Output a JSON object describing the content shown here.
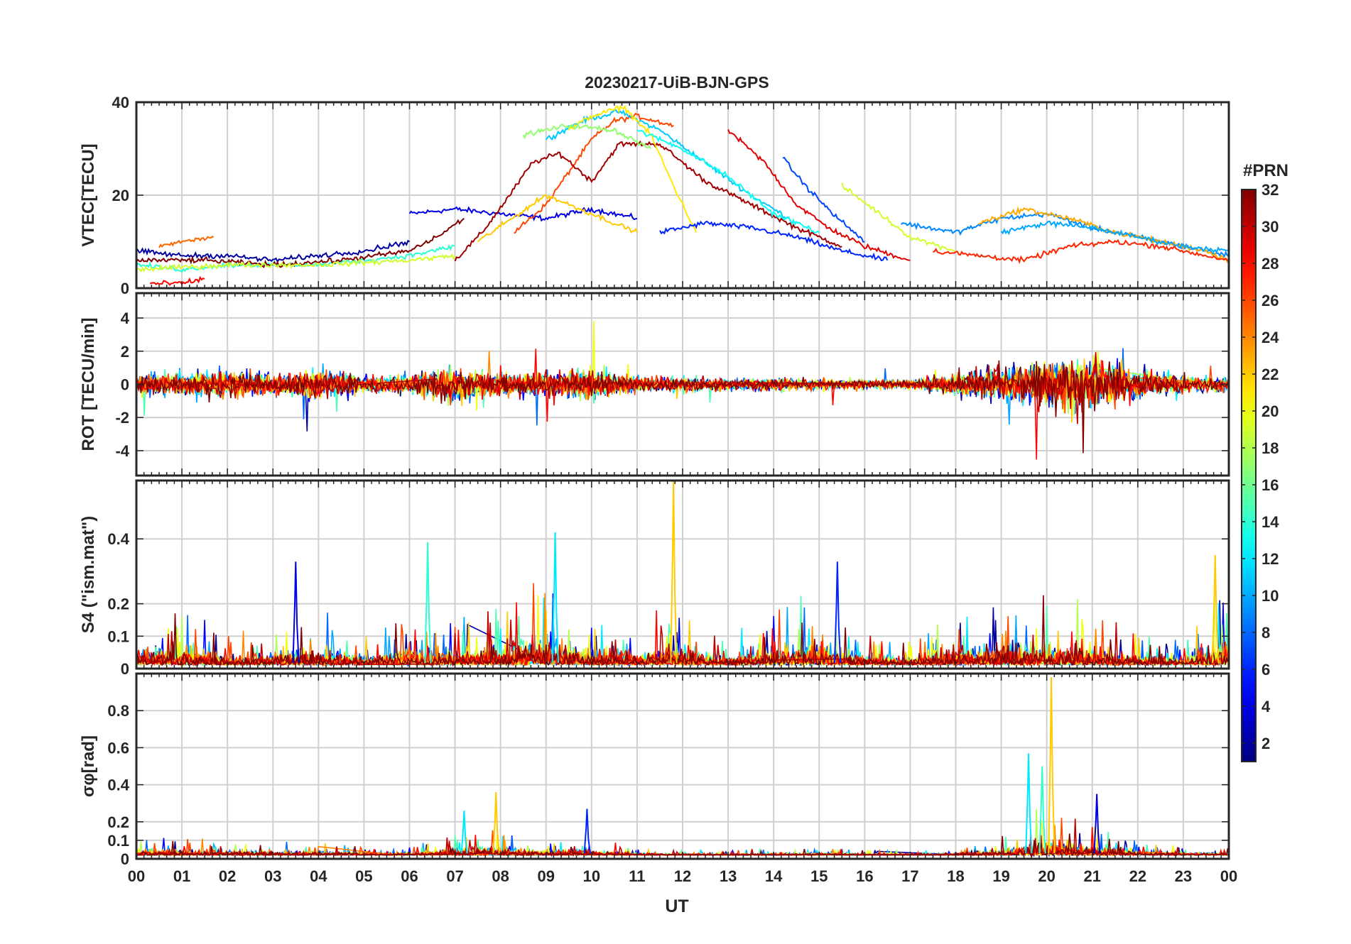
{
  "chart_data": {
    "type": "line",
    "title": "20230217-UiB-BJN-GPS",
    "xlabel": "UT",
    "x_ticks": [
      "00",
      "01",
      "02",
      "03",
      "04",
      "05",
      "06",
      "07",
      "08",
      "09",
      "10",
      "11",
      "12",
      "13",
      "14",
      "15",
      "16",
      "17",
      "18",
      "19",
      "20",
      "21",
      "22",
      "23",
      "00"
    ],
    "x_range_hours": [
      0,
      24
    ],
    "colorbar": {
      "label": "#PRN",
      "colormap": "jet",
      "range": [
        1,
        32
      ],
      "ticks": [
        2,
        4,
        6,
        8,
        10,
        12,
        14,
        16,
        18,
        20,
        22,
        24,
        26,
        28,
        30,
        32
      ]
    },
    "panels": [
      {
        "id": "vtec",
        "ylabel": "VTEC[TECU]",
        "ylim": [
          0,
          40
        ],
        "yticks": [
          0,
          20,
          40
        ],
        "ytick_labels": [
          "0",
          "20",
          "40"
        ],
        "grid": true,
        "series": [
          {
            "prn": 4,
            "x": [
              6.0,
              7.0,
              8.0,
              9.0,
              10.0,
              11.0
            ],
            "y": [
              16,
              17,
              16,
              15,
              17,
              15
            ]
          },
          {
            "prn": 26,
            "x": [
              8.3,
              9.0,
              9.5,
              10.0,
              10.5,
              11.0,
              11.8
            ],
            "y": [
              12,
              18,
              25,
              32,
              36,
              37,
              35
            ]
          },
          {
            "prn": 11,
            "x": [
              9.0,
              9.8,
              10.6,
              11.5,
              12.5,
              13.5,
              14.5
            ],
            "y": [
              32,
              36,
              38,
              34,
              27,
              20,
              14
            ]
          },
          {
            "prn": 31,
            "x": [
              7.0,
              7.6,
              8.2,
              8.7,
              9.3,
              10.0,
              10.6,
              11.5,
              12.5,
              13.5,
              14.5,
              15.5
            ],
            "y": [
              6,
              12,
              20,
              27,
              29,
              23,
              31,
              31,
              23,
              18,
              13,
              9
            ]
          },
          {
            "prn": 21,
            "x": [
              9.5,
              10.0,
              10.7,
              11.3,
              11.8,
              12.3
            ],
            "y": [
              34,
              37,
              39,
              33,
              22,
              12
            ]
          },
          {
            "prn": 6,
            "x": [
              11.5,
              12.5,
              13.5,
              14.5,
              15.5,
              16.5
            ],
            "y": [
              12,
              14,
              13,
              11,
              8,
              6
            ]
          },
          {
            "prn": 29,
            "x": [
              13.0,
              13.8,
              14.5,
              15.2,
              16.0,
              17.0
            ],
            "y": [
              34,
              27,
              18,
              13,
              9,
              6
            ]
          },
          {
            "prn": 13,
            "x": [
              11.0,
              12.0,
              13.0,
              14.0,
              15.0
            ],
            "y": [
              34,
              30,
              24,
              16,
              12
            ]
          },
          {
            "prn": 7,
            "x": [
              14.2,
              14.7,
              15.3,
              16.0
            ],
            "y": [
              28,
              22,
              16,
              10
            ]
          },
          {
            "prn": 22,
            "x": [
              7.5,
              9.0,
              10.0,
              11.0
            ],
            "y": [
              10,
              20,
              16,
              12
            ]
          },
          {
            "prn": 17,
            "x": [
              8.5,
              9.5,
              10.5,
              11.3
            ],
            "y": [
              33,
              35,
              34,
              30
            ]
          },
          {
            "prn": 19,
            "x": [
              15.5,
              16.2,
              17.0,
              18.0
            ],
            "y": [
              22,
              17,
              11,
              8
            ]
          },
          {
            "prn": 9,
            "x": [
              16.8,
              18.0,
              19.0,
              20.0,
              21.0,
              22.0,
              23.0,
              24.0
            ],
            "y": [
              14,
              12,
              15,
              16,
              13,
              11,
              9,
              7
            ]
          },
          {
            "prn": 23,
            "x": [
              18.5,
              19.5,
              20.5,
              21.5,
              22.5,
              23.5,
              24.0
            ],
            "y": [
              14,
              17,
              15,
              12,
              10,
              8,
              6
            ]
          },
          {
            "prn": 27,
            "x": [
              17.5,
              18.5,
              19.5,
              20.5,
              21.5,
              22.5,
              24.0
            ],
            "y": [
              8,
              7,
              6,
              9,
              10,
              9,
              6
            ]
          },
          {
            "prn": 2,
            "x": [
              0.0,
              1.0,
              2.0,
              3.0,
              4.0,
              5.0,
              6.0
            ],
            "y": [
              8,
              7,
              7,
              6,
              7,
              8,
              10
            ]
          },
          {
            "prn": 14,
            "x": [
              0.0,
              1.0,
              2.0,
              3.0,
              4.0,
              5.0,
              6.0,
              7.0
            ],
            "y": [
              5,
              4,
              5,
              5,
              5,
              6,
              7,
              9
            ]
          },
          {
            "prn": 25,
            "x": [
              0.5,
              1.0,
              1.7
            ],
            "y": [
              9,
              10,
              11
            ]
          },
          {
            "prn": 28,
            "x": [
              0.3,
              1.0,
              1.5
            ],
            "y": [
              1,
              1,
              2
            ]
          },
          {
            "prn": 32,
            "x": [
              0.0,
              1.5,
              3.0,
              4.5,
              6.0,
              6.6,
              7.2
            ],
            "y": [
              6,
              6,
              5,
              6,
              8,
              11,
              15
            ]
          },
          {
            "prn": 19,
            "x": [
              0.0,
              2.0,
              4.0,
              6.0,
              7.0
            ],
            "y": [
              4,
              5,
              5,
              6,
              7
            ]
          },
          {
            "prn": 10,
            "x": [
              19.0,
              20.0,
              21.0,
              22.0,
              23.0,
              24.0
            ],
            "y": [
              12,
              14,
              13,
              11,
              9,
              8
            ]
          }
        ]
      },
      {
        "id": "rot",
        "ylabel": "ROT [TECU/min]",
        "ylim": [
          -5.5,
          5.5
        ],
        "yticks": [
          -4,
          -2,
          0,
          2,
          4
        ],
        "ytick_labels": [
          "-4",
          "-2",
          "0",
          "2",
          "4"
        ],
        "grid": true,
        "activity_profile": {
          "x": [
            0,
            1,
            2,
            3,
            4,
            5,
            6,
            7,
            8,
            9,
            10,
            11,
            12,
            13,
            14,
            15,
            16,
            17,
            18,
            19,
            20,
            21,
            22,
            23,
            24
          ],
          "amplitude": [
            0.9,
            1.0,
            1.2,
            0.9,
            1.4,
            0.8,
            0.9,
            1.6,
            1.0,
            1.0,
            1.4,
            0.7,
            0.6,
            0.5,
            0.6,
            0.5,
            0.4,
            0.4,
            1.0,
            1.5,
            2.2,
            2.5,
            1.4,
            0.8,
            0.6
          ]
        }
      },
      {
        "id": "s4",
        "ylabel": "S4 (\"ism.mat\")",
        "ylim": [
          0,
          0.58
        ],
        "yticks": [
          0,
          0.1,
          0.2,
          0.4
        ],
        "ytick_labels": [
          "0",
          "0.1",
          "0.2",
          "0.4"
        ],
        "grid": true,
        "activity_profile": {
          "x": [
            0,
            1,
            2,
            3,
            4,
            5,
            6,
            7,
            8,
            9,
            10,
            11,
            12,
            13,
            14,
            15,
            16,
            17,
            18,
            19,
            20,
            21,
            22,
            23,
            24
          ],
          "amplitude": [
            0.2,
            0.2,
            0.1,
            0.12,
            0.18,
            0.1,
            0.2,
            0.15,
            0.2,
            0.3,
            0.15,
            0.15,
            0.2,
            0.08,
            0.2,
            0.25,
            0.1,
            0.08,
            0.2,
            0.2,
            0.22,
            0.2,
            0.12,
            0.08,
            0.3
          ]
        },
        "peaks": [
          {
            "x": 11.8,
            "y": 0.58
          },
          {
            "x": 9.2,
            "y": 0.42
          },
          {
            "x": 6.4,
            "y": 0.39
          },
          {
            "x": 23.7,
            "y": 0.35
          },
          {
            "x": 3.5,
            "y": 0.33
          },
          {
            "x": 15.4,
            "y": 0.33
          }
        ]
      },
      {
        "id": "sigma",
        "ylabel": "σφ[rad]",
        "ylim": [
          0,
          1.0
        ],
        "yticks": [
          0,
          0.1,
          0.2,
          0.4,
          0.6,
          0.8
        ],
        "ytick_labels": [
          "0",
          "0.1",
          "0.2",
          "0.4",
          "0.6",
          "0.8"
        ],
        "grid": true,
        "activity_profile": {
          "x": [
            0,
            1,
            2,
            3,
            4,
            5,
            6,
            7,
            8,
            9,
            10,
            11,
            12,
            13,
            14,
            15,
            16,
            17,
            18,
            19,
            20,
            21,
            22,
            23,
            24
          ],
          "amplitude": [
            0.1,
            0.1,
            0.08,
            0.07,
            0.08,
            0.06,
            0.05,
            0.12,
            0.15,
            0.08,
            0.1,
            0.04,
            0.03,
            0.03,
            0.04,
            0.05,
            0.03,
            0.03,
            0.04,
            0.1,
            0.3,
            0.2,
            0.08,
            0.05,
            0.05
          ]
        },
        "peaks": [
          {
            "x": 20.1,
            "y": 0.98
          },
          {
            "x": 19.6,
            "y": 0.57
          },
          {
            "x": 19.9,
            "y": 0.5
          },
          {
            "x": 7.9,
            "y": 0.36
          },
          {
            "x": 21.1,
            "y": 0.35
          },
          {
            "x": 9.9,
            "y": 0.27
          },
          {
            "x": 7.2,
            "y": 0.26
          }
        ]
      }
    ]
  }
}
